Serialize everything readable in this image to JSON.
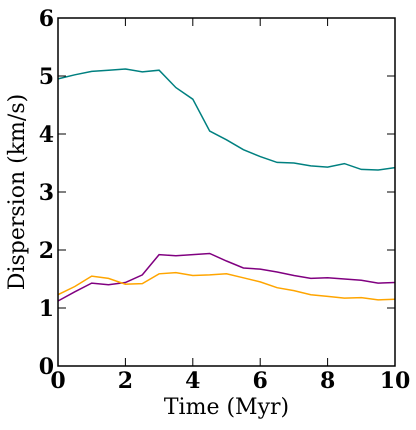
{
  "chart_data": {
    "type": "line",
    "xlabel": "Time (Myr)",
    "ylabel": "Dispersion (km/s)",
    "xlim": [
      0,
      10
    ],
    "ylim": [
      0,
      6
    ],
    "x_ticks": [
      0,
      2,
      4,
      6,
      8,
      10
    ],
    "y_ticks": [
      0,
      1,
      2,
      3,
      4,
      5,
      6
    ],
    "grid": false,
    "legend": "none",
    "series": [
      {
        "color": "#008080",
        "x": [
          0,
          0.5,
          1,
          1.5,
          2,
          2.5,
          3,
          3.5,
          4,
          4.5,
          5,
          5.5,
          6,
          6.5,
          7,
          7.5,
          8,
          8.5,
          9,
          9.5,
          10
        ],
        "values": [
          4.95,
          5.02,
          5.08,
          5.1,
          5.12,
          5.07,
          5.1,
          4.8,
          4.6,
          4.05,
          3.9,
          3.73,
          3.61,
          3.51,
          3.5,
          3.45,
          3.43,
          3.49,
          3.39,
          3.38,
          3.42
        ]
      },
      {
        "color": "#800080",
        "x": [
          0,
          0.5,
          1,
          1.5,
          2,
          2.5,
          3,
          3.5,
          4,
          4.5,
          5,
          5.5,
          6,
          6.5,
          7,
          7.5,
          8,
          8.5,
          9,
          9.5,
          10
        ],
        "values": [
          1.12,
          1.28,
          1.43,
          1.4,
          1.44,
          1.57,
          1.92,
          1.9,
          1.92,
          1.94,
          1.81,
          1.69,
          1.67,
          1.62,
          1.56,
          1.51,
          1.52,
          1.5,
          1.48,
          1.43,
          1.44
        ]
      },
      {
        "color": "#FFA500",
        "x": [
          0,
          0.5,
          1,
          1.5,
          2,
          2.5,
          3,
          3.5,
          4,
          4.5,
          5,
          5.5,
          6,
          6.5,
          7,
          7.5,
          8,
          8.5,
          9,
          9.5,
          10
        ],
        "values": [
          1.23,
          1.37,
          1.55,
          1.51,
          1.41,
          1.42,
          1.59,
          1.61,
          1.56,
          1.57,
          1.59,
          1.52,
          1.45,
          1.35,
          1.3,
          1.23,
          1.2,
          1.17,
          1.18,
          1.14,
          1.15
        ]
      }
    ]
  }
}
